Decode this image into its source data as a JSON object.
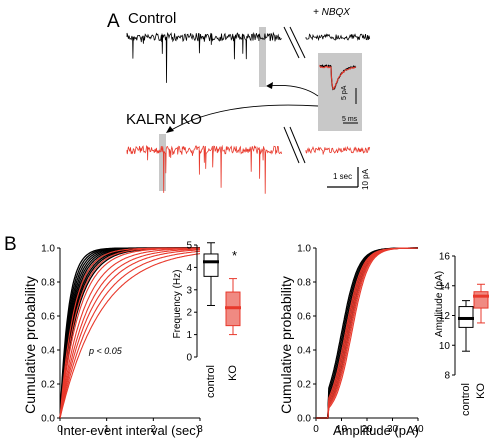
{
  "panel_a": {
    "letter": "A",
    "control_label": "Control",
    "ko_label": "KALRN KO",
    "nbqx_label": "+ NBQX",
    "inset_scale_y": "5 pA",
    "inset_scale_x": "5 ms",
    "scale_x": "1 sec",
    "scale_y": "10 pA"
  },
  "panel_b": {
    "letter": "B",
    "p_value": "p < 0.05",
    "significance": "*"
  },
  "colors": {
    "control": "#000000",
    "ko": "#e8392c",
    "ko_box_fill": "#f08a82",
    "highlight": "#c8c8c8"
  },
  "chart_data": [
    {
      "type": "line",
      "xlabel": "Inter-event interval (sec)",
      "ylabel": "Cumulative probability",
      "xlim": [
        0,
        3
      ],
      "ylim": [
        0,
        1.0
      ],
      "xticks": [
        "0",
        "1",
        "2",
        "3"
      ],
      "yticks": [
        "0.0",
        "0.2",
        "0.4",
        "0.6",
        "0.8",
        "1.0"
      ],
      "series": [
        {
          "group": "control",
          "taus": [
            0.18,
            0.2,
            0.22,
            0.24,
            0.26,
            0.28,
            0.3,
            0.32,
            0.34,
            0.38
          ]
        },
        {
          "group": "KO",
          "taus": [
            0.3,
            0.36,
            0.42,
            0.5,
            0.58,
            0.66,
            0.76,
            0.88
          ]
        }
      ]
    },
    {
      "type": "box",
      "ylabel": "Frequency (Hz)",
      "ylim": [
        0,
        5
      ],
      "yticks": [
        "0",
        "1",
        "2",
        "3",
        "4",
        "5"
      ],
      "categories": [
        "control",
        "KO"
      ],
      "boxes": [
        {
          "group": "control",
          "min": 2.3,
          "q1": 3.6,
          "median": 4.25,
          "q3": 4.6,
          "max": 5.1
        },
        {
          "group": "KO",
          "min": 1.0,
          "q1": 1.4,
          "median": 2.2,
          "q3": 2.9,
          "max": 3.5
        }
      ]
    },
    {
      "type": "line",
      "xlabel": "Amplitude (pA)",
      "ylabel": "Cumulative probability",
      "xlim": [
        0,
        40
      ],
      "ylim": [
        0,
        1.0
      ],
      "xticks": [
        "0",
        "10",
        "20",
        "30",
        "40"
      ],
      "yticks": [
        "0.0",
        "0.2",
        "0.4",
        "0.6",
        "0.8",
        "1.0"
      ],
      "series": [
        {
          "group": "control",
          "medians": [
            10,
            10.5,
            11,
            11.5,
            12,
            12.5,
            13
          ]
        },
        {
          "group": "KO",
          "medians": [
            11.5,
            12,
            12.5,
            13,
            13.5,
            14
          ]
        }
      ]
    },
    {
      "type": "box",
      "ylabel": "Amplitude (pA)",
      "ylim": [
        8,
        16
      ],
      "yticks": [
        "8",
        "10",
        "12",
        "14",
        "16"
      ],
      "categories": [
        "control",
        "KO"
      ],
      "boxes": [
        {
          "group": "control",
          "min": 9.6,
          "q1": 11.2,
          "median": 11.8,
          "q3": 12.6,
          "max": 13.0
        },
        {
          "group": "KO",
          "min": 11.5,
          "q1": 12.5,
          "median": 13.3,
          "q3": 13.6,
          "max": 14.1
        }
      ]
    }
  ]
}
